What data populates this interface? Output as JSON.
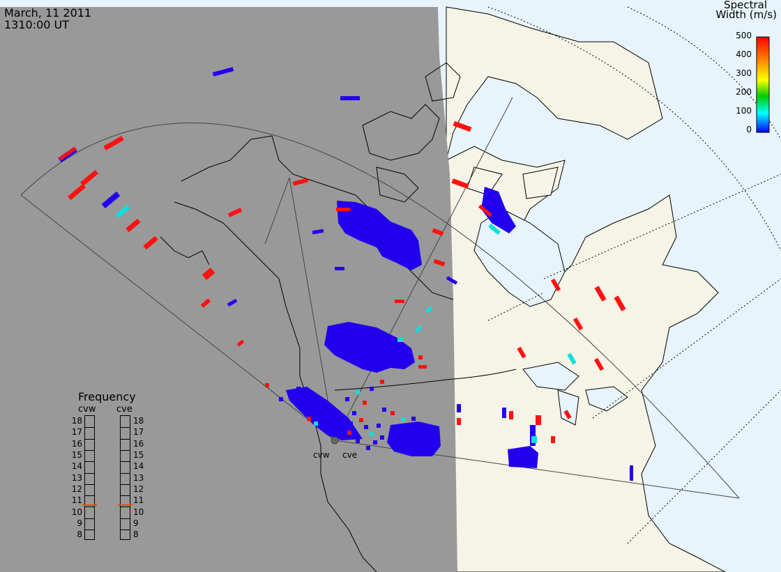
{
  "header": {
    "date": "March, 11 2011",
    "time": "1310:00 UT"
  },
  "colorbar": {
    "title_line1": "Spectral",
    "title_line2": "Width (m/s)",
    "ticks": [
      "500",
      "400",
      "300",
      "200",
      "100",
      "0"
    ],
    "colors": [
      "#ff0000",
      "#ff8800",
      "#ffff00",
      "#00cc00",
      "#00ffff",
      "#0000ff"
    ]
  },
  "frequency_panel": {
    "title": "Frequency",
    "columns": [
      "cvw",
      "cve"
    ],
    "levels": [
      "18",
      "17",
      "16",
      "15",
      "14",
      "13",
      "12",
      "11",
      "10",
      "9",
      "8"
    ],
    "cvw_value": 10.6,
    "cve_value": 10.6,
    "marker_color": "#ff4400"
  },
  "stations": [
    {
      "name": "cvw"
    },
    {
      "name": "cve"
    }
  ],
  "colors": {
    "night": "#999999",
    "land": "#f6f4e6",
    "ocean": "#e8f4fb",
    "scatter_blue": "#2200ee",
    "scatter_red": "#ff1111",
    "scatter_cyan": "#11dddd"
  }
}
